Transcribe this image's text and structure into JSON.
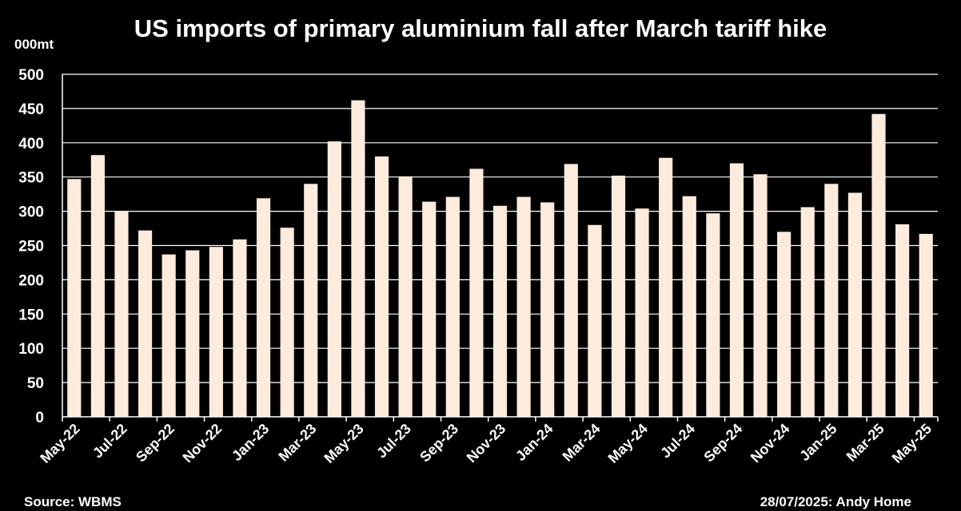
{
  "chart_data": {
    "type": "bar",
    "title": "US imports of primary aluminium fall after March tariff hike",
    "ylabel": "000mt",
    "ylim": [
      0,
      500
    ],
    "yticks": [
      0,
      50,
      100,
      150,
      200,
      250,
      300,
      350,
      400,
      450,
      500
    ],
    "grid": true,
    "bar_color": "#FDEBDD",
    "background": "#000000",
    "categories": [
      "May-22",
      "Jun-22",
      "Jul-22",
      "Aug-22",
      "Sep-22",
      "Oct-22",
      "Nov-22",
      "Dec-22",
      "Jan-23",
      "Feb-23",
      "Mar-23",
      "Apr-23",
      "May-23",
      "Jun-23",
      "Jul-23",
      "Aug-23",
      "Sep-23",
      "Oct-23",
      "Nov-23",
      "Dec-23",
      "Jan-24",
      "Feb-24",
      "Mar-24",
      "Apr-24",
      "May-24",
      "Jun-24",
      "Jul-24",
      "Aug-24",
      "Sep-24",
      "Oct-24",
      "Nov-24",
      "Dec-24",
      "Jan-25",
      "Feb-25",
      "Mar-25",
      "Apr-25",
      "May-25"
    ],
    "xtick_labels": [
      "May-22",
      "Jul-22",
      "Sep-22",
      "Nov-22",
      "Jan-23",
      "Mar-23",
      "May-23",
      "Jul-23",
      "Sep-23",
      "Nov-23",
      "Jan-24",
      "Mar-24",
      "May-24",
      "Jul-24",
      "Sep-24",
      "Nov-24",
      "Jan-25",
      "Mar-25",
      "May-25"
    ],
    "values": [
      347,
      382,
      300,
      272,
      237,
      243,
      248,
      259,
      319,
      276,
      340,
      402,
      462,
      380,
      351,
      314,
      321,
      362,
      308,
      321,
      313,
      369,
      280,
      352,
      304,
      378,
      322,
      297,
      370,
      354,
      270,
      306,
      340,
      327,
      442,
      281,
      267
    ]
  },
  "footer": {
    "source": "Source: WBMS",
    "credit": "28/07/2025: Andy Home"
  }
}
